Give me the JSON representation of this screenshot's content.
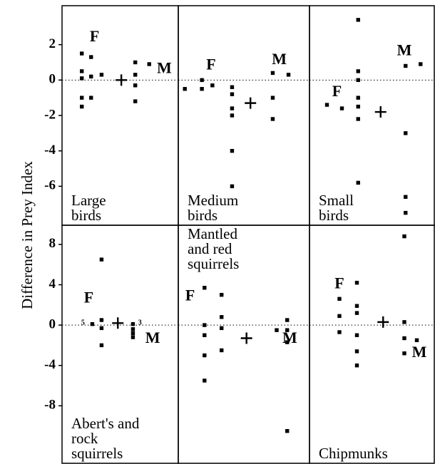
{
  "ylabel": "Difference in Prey Index",
  "chart_data": [
    {
      "type": "scatter",
      "label": [
        "Large",
        "birds"
      ],
      "label_position": "bottom",
      "x": [
        1.7,
        1.7,
        1.7,
        1.7,
        1.7,
        2.5,
        2.5,
        2.5,
        3.4,
        6.3,
        6.3,
        6.3,
        6.3,
        7.5
      ],
      "values": [
        1.5,
        0.5,
        0.1,
        -1,
        -1.5,
        1.3,
        0.2,
        -1,
        0.3,
        1.0,
        0.3,
        -0.3,
        -1.2,
        0.9
      ],
      "mean": {
        "x": 5.1,
        "y": 0
      },
      "annotations": [
        {
          "text": "F",
          "x": 2.8,
          "y": 2.4
        },
        {
          "text": "M",
          "x": 8.8,
          "y": 0.6
        }
      ],
      "xlim": [
        0,
        10
      ],
      "ylim": [
        -8.2,
        4.2
      ],
      "yticks": [
        -6,
        -4,
        -2,
        0,
        2
      ],
      "zero_line": true,
      "color": "#000000"
    },
    {
      "type": "scatter",
      "label": [
        "Medium",
        "birds"
      ],
      "label_position": "bottom",
      "x": [
        0.5,
        1.8,
        1.8,
        2.6,
        4.1,
        4.1,
        4.1,
        4.1,
        4.1,
        4.1,
        7.2,
        7.2,
        7.2,
        8.4
      ],
      "values": [
        -0.5,
        0,
        -0.5,
        -0.3,
        -0.4,
        -0.8,
        -1.6,
        -2.0,
        -4.0,
        -6.0,
        0.4,
        -1.0,
        -2.2,
        0.3
      ],
      "mean": {
        "x": 5.5,
        "y": -1.3
      },
      "annotations": [
        {
          "text": "F",
          "x": 2.5,
          "y": 0.8
        },
        {
          "text": "M",
          "x": 7.7,
          "y": 1.1
        }
      ],
      "xlim": [
        0,
        10
      ],
      "ylim": [
        -8.2,
        4.2
      ],
      "zero_line": true,
      "color": "#000000"
    },
    {
      "type": "scatter",
      "label": [
        "Small",
        "birds"
      ],
      "label_position": "bottom",
      "x": [
        1.4,
        2.6,
        3.9,
        3.9,
        3.9,
        3.9,
        3.9,
        3.9,
        3.9,
        7.7,
        7.7,
        7.7,
        7.7,
        8.9
      ],
      "values": [
        -1.4,
        -1.6,
        3.4,
        0.5,
        0,
        -1,
        -1.5,
        -2.2,
        -5.8,
        0.8,
        -3,
        -6.6,
        -7.5,
        0.9
      ],
      "mean": {
        "x": 5.7,
        "y": -1.8
      },
      "annotations": [
        {
          "text": "F",
          "x": 2.2,
          "y": -0.7
        },
        {
          "text": "M",
          "x": 7.6,
          "y": 1.6
        }
      ],
      "xlim": [
        0,
        10
      ],
      "ylim": [
        -8.2,
        4.2
      ],
      "zero_line": true,
      "color": "#000000"
    },
    {
      "type": "scatter",
      "label": [
        "Abert's and",
        "rock",
        "squirrels"
      ],
      "label_position": "bottom",
      "x": [
        2.6,
        3.4,
        3.4,
        3.4,
        3.4,
        6.1,
        6.1,
        6.1,
        6.1
      ],
      "values": [
        0.1,
        6.5,
        0.5,
        -0.3,
        -2.0,
        0.1,
        -0.4,
        -0.8,
        -1.2
      ],
      "mean": {
        "x": 4.8,
        "y": 0.2
      },
      "annotations": [
        {
          "text": "F",
          "x": 2.3,
          "y": 2.6
        },
        {
          "text": "M",
          "x": 7.8,
          "y": -1.4
        },
        {
          "text": "5",
          "x": 1.8,
          "y": 0.2
        },
        {
          "text": "3",
          "x": 6.7,
          "y": 0.2
        }
      ],
      "xlim": [
        0,
        10
      ],
      "ylim": [
        -13.7,
        9.9
      ],
      "yticks": [
        -8,
        -4,
        0,
        4,
        8
      ],
      "zero_line": true,
      "color": "#000000"
    },
    {
      "type": "scatter",
      "label": [
        "Mantled",
        "and red",
        "squirrels"
      ],
      "label_position": "top",
      "x": [
        2.0,
        2.0,
        2.0,
        2.0,
        2.0,
        3.3,
        3.3,
        3.3,
        3.3,
        7.5,
        8.3,
        8.3,
        8.3,
        8.3
      ],
      "values": [
        3.7,
        0,
        -1,
        -3,
        -5.5,
        3,
        0.8,
        -0.3,
        -2.5,
        -0.5,
        0.5,
        -0.5,
        -1.7,
        -10.5
      ],
      "mean": {
        "x": 5.2,
        "y": -1.3
      },
      "annotations": [
        {
          "text": "F",
          "x": 0.9,
          "y": 2.8
        },
        {
          "text": "M",
          "x": 8.5,
          "y": -1.4
        }
      ],
      "xlim": [
        0,
        10
      ],
      "ylim": [
        -13.7,
        9.9
      ],
      "zero_line": true,
      "color": "#000000"
    },
    {
      "type": "scatter",
      "label": [
        "Chipmunks"
      ],
      "label_position": "bottom",
      "x": [
        2.4,
        2.4,
        2.4,
        3.8,
        3.8,
        3.8,
        3.8,
        3.8,
        3.8,
        7.6,
        7.6,
        7.6,
        7.6,
        8.6
      ],
      "values": [
        2.6,
        0.9,
        -0.7,
        4.2,
        1.9,
        1.2,
        -1.0,
        -2.6,
        -4.0,
        8.8,
        0.3,
        -1.3,
        -2.8,
        -1.5
      ],
      "mean": {
        "x": 5.9,
        "y": 0.3
      },
      "annotations": [
        {
          "text": "F",
          "x": 2.4,
          "y": 4.0
        },
        {
          "text": "M",
          "x": 8.8,
          "y": -2.8
        }
      ],
      "xlim": [
        0,
        10
      ],
      "ylim": [
        -13.7,
        9.9
      ],
      "zero_line": true,
      "color": "#000000"
    }
  ]
}
